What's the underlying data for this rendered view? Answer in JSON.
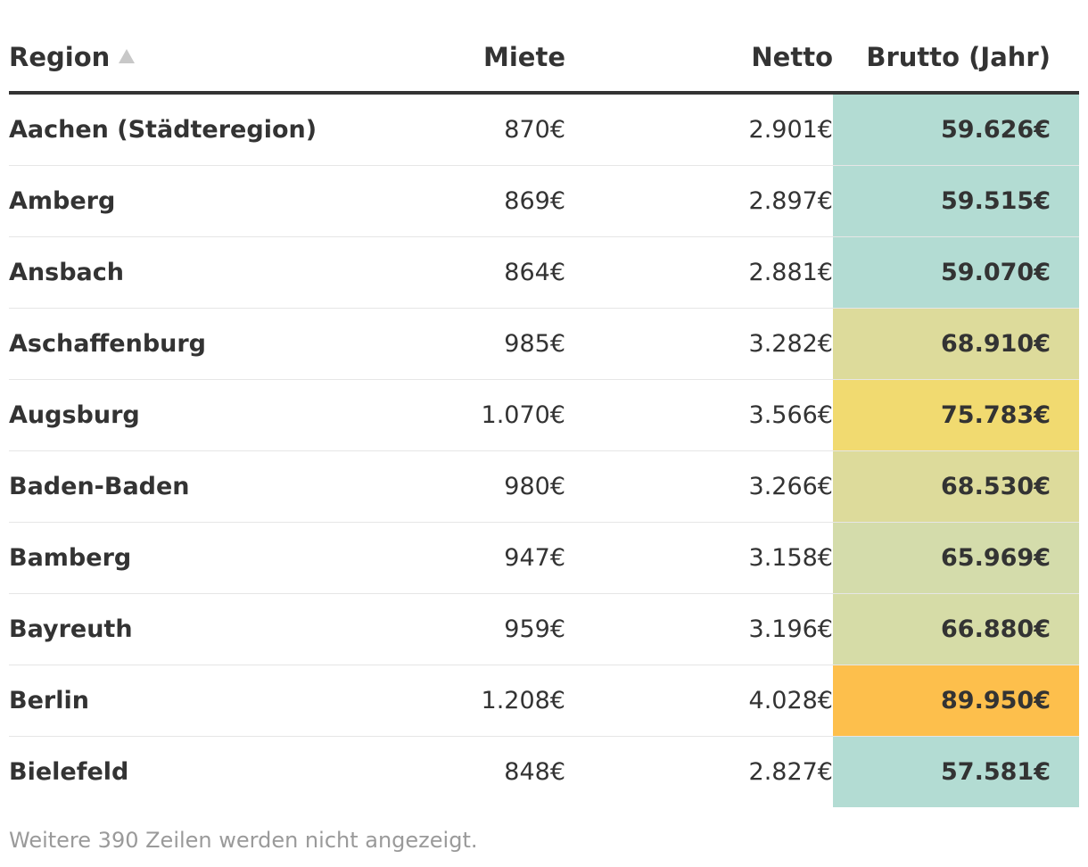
{
  "table": {
    "headers": {
      "region": "Region",
      "miete": "Miete",
      "netto": "Netto",
      "brutto": "Brutto (Jahr)"
    },
    "sort_indicator": "ascending",
    "rows": [
      {
        "region": "Aachen (Städteregion)",
        "miete": "870€",
        "netto": "2.901€",
        "brutto": "59.626€",
        "color": "#b3dcd3"
      },
      {
        "region": "Amberg",
        "miete": "869€",
        "netto": "2.897€",
        "brutto": "59.515€",
        "color": "#b3dcd3"
      },
      {
        "region": "Ansbach",
        "miete": "864€",
        "netto": "2.881€",
        "brutto": "59.070€",
        "color": "#b3dcd3"
      },
      {
        "region": "Aschaffenburg",
        "miete": "985€",
        "netto": "3.282€",
        "brutto": "68.910€",
        "color": "#dddb9b"
      },
      {
        "region": "Augsburg",
        "miete": "1.070€",
        "netto": "3.566€",
        "brutto": "75.783€",
        "color": "#f1da70"
      },
      {
        "region": "Baden-Baden",
        "miete": "980€",
        "netto": "3.266€",
        "brutto": "68.530€",
        "color": "#dddb9b"
      },
      {
        "region": "Bamberg",
        "miete": "947€",
        "netto": "3.158€",
        "brutto": "65.969€",
        "color": "#d4dcab"
      },
      {
        "region": "Bayreuth",
        "miete": "959€",
        "netto": "3.196€",
        "brutto": "66.880€",
        "color": "#d6dca7"
      },
      {
        "region": "Berlin",
        "miete": "1.208€",
        "netto": "4.028€",
        "brutto": "89.950€",
        "color": "#fdbf4c"
      },
      {
        "region": "Bielefeld",
        "miete": "848€",
        "netto": "2.827€",
        "brutto": "57.581€",
        "color": "#b3dcd3"
      }
    ]
  },
  "footer": {
    "note": "Weitere 390 Zeilen werden nicht angezeigt."
  }
}
